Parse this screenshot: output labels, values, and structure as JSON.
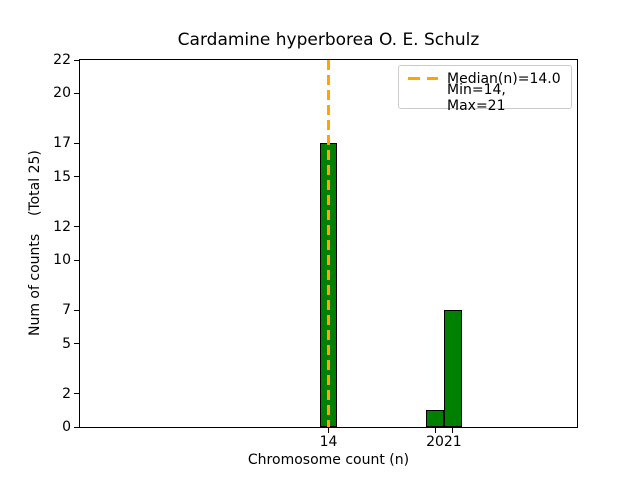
{
  "chart_data": {
    "type": "bar",
    "title": "Cardamine hyperborea O. E. Schulz",
    "xlabel": "Chromosome count (n)",
    "ylabel": "Num of counts    (Total 25)",
    "x": [
      14,
      20,
      21
    ],
    "values": [
      17,
      1,
      7
    ],
    "bar_width": 1,
    "xlim": [
      0,
      28
    ],
    "ylim": [
      0,
      22
    ],
    "xticks": [
      14,
      20,
      21
    ],
    "yticks": [
      0,
      2,
      5,
      7,
      10,
      12,
      15,
      17,
      20,
      22
    ],
    "median": 14.0,
    "min": 14,
    "max": 21,
    "total_counts": 25,
    "grid": false,
    "legend_position": "upper right",
    "colors": {
      "bar_fill": "#008000",
      "bar_edge": "#000000",
      "median_line": "#FFA500",
      "legend_border": "#cccccc"
    }
  },
  "legend": {
    "line1": "Median(n)=14.0",
    "line2": "Min=14, Max=21"
  }
}
